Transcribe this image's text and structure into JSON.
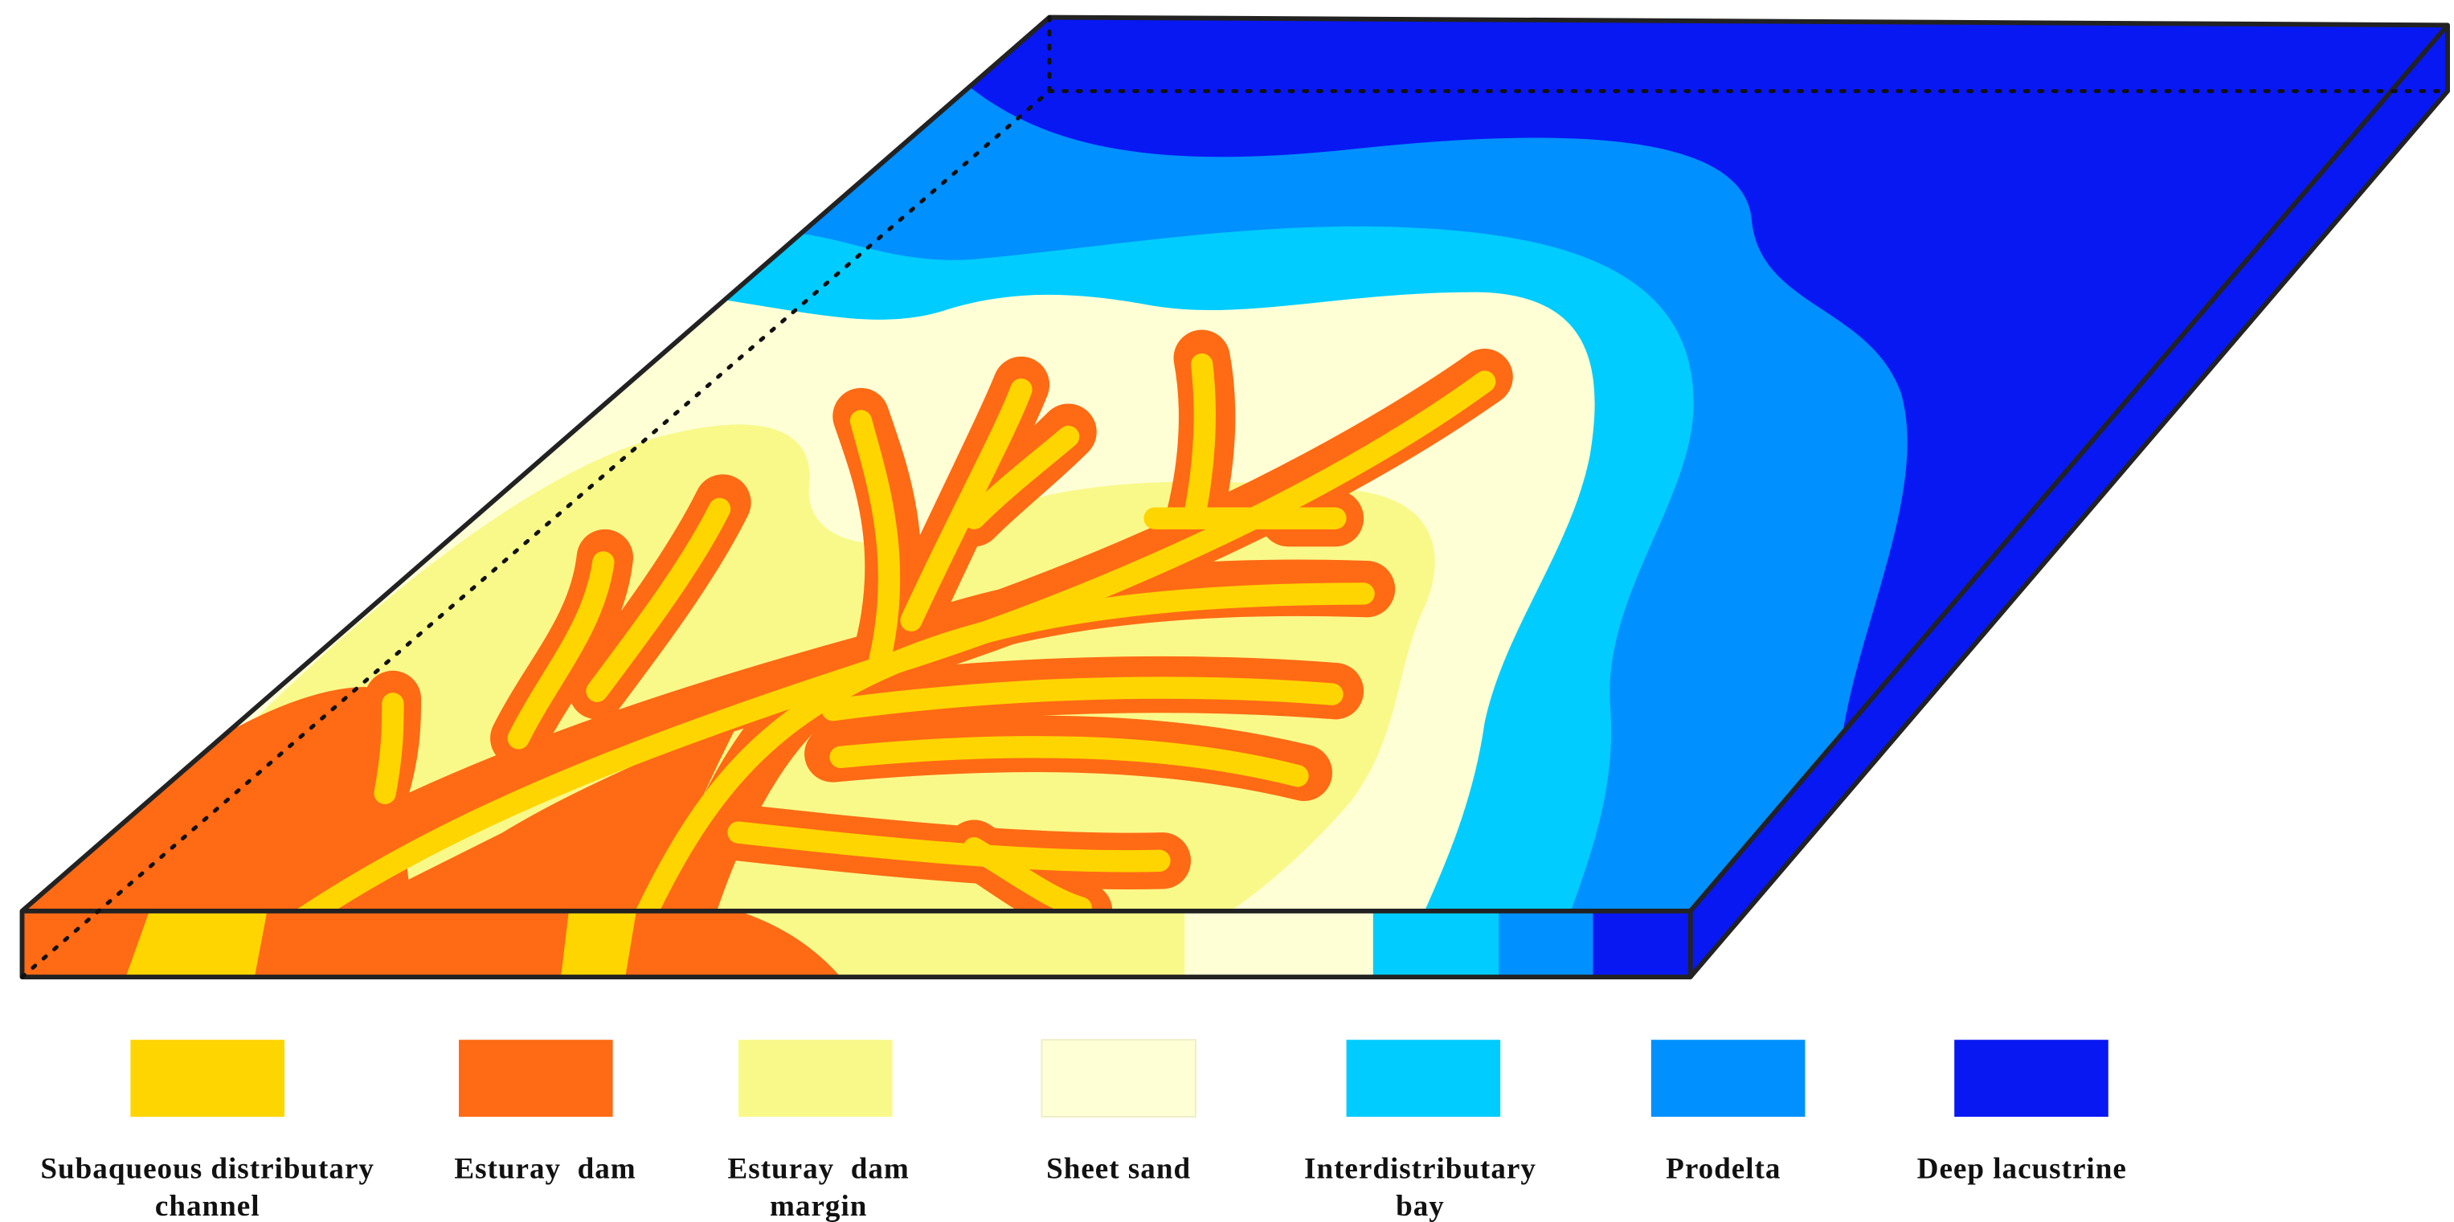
{
  "colors": {
    "subaqueous_distributary_channel": "#FFD500",
    "esturay_dam": "#FF6A14",
    "esturay_dam_margin": "#F9F98A",
    "sheet_sand": "#FFFFD6",
    "interdistributary_bay": "#00CCFF",
    "prodelta": "#0090FF",
    "deep_lacustrine": "#0818F2",
    "outline": "#222222"
  },
  "legend": [
    {
      "key": "subaqueous_distributary_channel",
      "line1": "Subaqueous distributary",
      "line2": "channel"
    },
    {
      "key": "esturay_dam",
      "line1": "Esturay  dam",
      "line2": ""
    },
    {
      "key": "esturay_dam_margin",
      "line1": "Esturay  dam",
      "line2": "margin"
    },
    {
      "key": "sheet_sand",
      "line1": "Sheet sand",
      "line2": ""
    },
    {
      "key": "interdistributary_bay",
      "line1": "Interdistributary",
      "line2": "bay"
    },
    {
      "key": "prodelta",
      "line1": "Prodelta",
      "line2": ""
    },
    {
      "key": "deep_lacustrine",
      "line1": "Deep lacustrine",
      "line2": ""
    }
  ]
}
